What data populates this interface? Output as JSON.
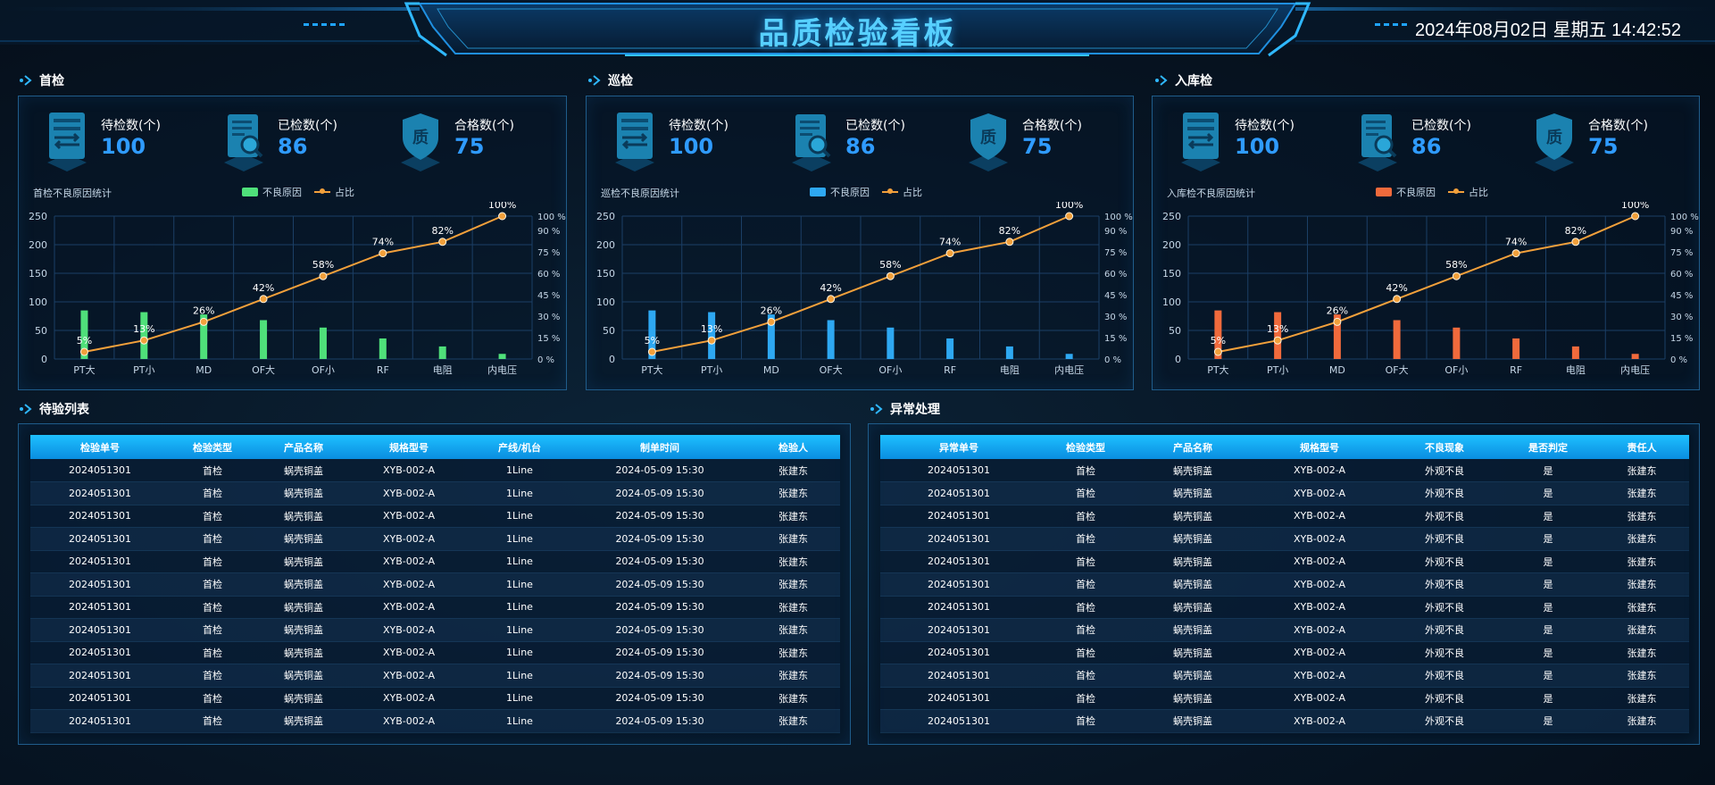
{
  "header": {
    "title": "品质检验看板",
    "datetime": "2024年08月02日 星期五 14:42:52"
  },
  "stat_labels": {
    "pending": "待检数(个)",
    "inspected": "已检数(个)",
    "qualified": "合格数(个)",
    "quality_char": "质"
  },
  "panels": [
    {
      "title": "首检",
      "pending": "100",
      "inspected": "86",
      "qualified": "75",
      "chart_caption": "首检不良原因统计",
      "legend_bar": "不良原因",
      "legend_line": "占比",
      "color": "#4fe07a"
    },
    {
      "title": "巡检",
      "pending": "100",
      "inspected": "86",
      "qualified": "75",
      "chart_caption": "巡检不良原因统计",
      "legend_bar": "不良原因",
      "legend_line": "占比",
      "color": "#2ea8f2"
    },
    {
      "title": "入库检",
      "pending": "100",
      "inspected": "86",
      "qualified": "75",
      "chart_caption": "入库检不良原因统计",
      "legend_bar": "不良原因",
      "legend_line": "占比",
      "color": "#f06a3c"
    }
  ],
  "chart_data": [
    {
      "type": "bar",
      "title": "首检不良原因统计",
      "categories": [
        "PT大",
        "PT小",
        "MD",
        "OF大",
        "OF小",
        "RF",
        "电阻",
        "内电压"
      ],
      "series": [
        {
          "name": "不良原因",
          "type": "bar",
          "axis": "left",
          "values": [
            85,
            82,
            78,
            68,
            55,
            36,
            22,
            9
          ]
        },
        {
          "name": "占比",
          "type": "line",
          "axis": "right",
          "values": [
            5,
            13,
            26,
            42,
            58,
            74,
            82,
            100
          ]
        }
      ],
      "ylim": [
        0,
        250
      ],
      "yticks": [
        0,
        50,
        100,
        150,
        200,
        250
      ],
      "y2lim": [
        0,
        100
      ],
      "y2ticks": [
        "0 %",
        "15 %",
        "30 %",
        "45 %",
        "60 %",
        "75 %",
        "90 %",
        "100 %"
      ],
      "point_labels": [
        "5%",
        "13%",
        "26%",
        "42%",
        "58%",
        "74%",
        "82%",
        "100%"
      ],
      "grid": true,
      "legend_position": "top-center"
    },
    {
      "type": "bar",
      "title": "巡检不良原因统计",
      "categories": [
        "PT大",
        "PT小",
        "MD",
        "OF大",
        "OF小",
        "RF",
        "电阻",
        "内电压"
      ],
      "series": [
        {
          "name": "不良原因",
          "type": "bar",
          "axis": "left",
          "values": [
            85,
            82,
            78,
            68,
            55,
            36,
            22,
            9
          ]
        },
        {
          "name": "占比",
          "type": "line",
          "axis": "right",
          "values": [
            5,
            13,
            26,
            42,
            58,
            74,
            82,
            100
          ]
        }
      ],
      "ylim": [
        0,
        250
      ],
      "yticks": [
        0,
        50,
        100,
        150,
        200,
        250
      ],
      "y2lim": [
        0,
        100
      ],
      "y2ticks": [
        "0 %",
        "15 %",
        "30 %",
        "45 %",
        "60 %",
        "75 %",
        "90 %",
        "100 %"
      ],
      "point_labels": [
        "5%",
        "13%",
        "26%",
        "42%",
        "58%",
        "74%",
        "82%",
        "100%"
      ],
      "grid": true,
      "legend_position": "top-center"
    },
    {
      "type": "bar",
      "title": "入库检不良原因统计",
      "categories": [
        "PT大",
        "PT小",
        "MD",
        "OF大",
        "OF小",
        "RF",
        "电阻",
        "内电压"
      ],
      "series": [
        {
          "name": "不良原因",
          "type": "bar",
          "axis": "left",
          "values": [
            85,
            82,
            78,
            68,
            55,
            36,
            22,
            9
          ]
        },
        {
          "name": "占比",
          "type": "line",
          "axis": "right",
          "values": [
            5,
            13,
            26,
            42,
            58,
            74,
            82,
            100
          ]
        }
      ],
      "ylim": [
        0,
        250
      ],
      "yticks": [
        0,
        50,
        100,
        150,
        200,
        250
      ],
      "y2lim": [
        0,
        100
      ],
      "y2ticks": [
        "0 %",
        "15 %",
        "30 %",
        "45 %",
        "60 %",
        "75 %",
        "90 %",
        "100 %"
      ],
      "point_labels": [
        "5%",
        "13%",
        "26%",
        "42%",
        "58%",
        "74%",
        "82%",
        "100%"
      ],
      "grid": true,
      "legend_position": "top-center"
    }
  ],
  "pending_list": {
    "title": "待验列表",
    "columns": [
      "检验单号",
      "检验类型",
      "产品名称",
      "规格型号",
      "产线/机台",
      "制单时间",
      "检验人"
    ],
    "rows": [
      [
        "2024051301",
        "首检",
        "蜗壳铜盖",
        "XYB-002-A",
        "1Line",
        "2024-05-09 15:30",
        "张建东"
      ],
      [
        "2024051301",
        "首检",
        "蜗壳铜盖",
        "XYB-002-A",
        "1Line",
        "2024-05-09 15:30",
        "张建东"
      ],
      [
        "2024051301",
        "首检",
        "蜗壳铜盖",
        "XYB-002-A",
        "1Line",
        "2024-05-09 15:30",
        "张建东"
      ],
      [
        "2024051301",
        "首检",
        "蜗壳铜盖",
        "XYB-002-A",
        "1Line",
        "2024-05-09 15:30",
        "张建东"
      ],
      [
        "2024051301",
        "首检",
        "蜗壳铜盖",
        "XYB-002-A",
        "1Line",
        "2024-05-09 15:30",
        "张建东"
      ],
      [
        "2024051301",
        "首检",
        "蜗壳铜盖",
        "XYB-002-A",
        "1Line",
        "2024-05-09 15:30",
        "张建东"
      ],
      [
        "2024051301",
        "首检",
        "蜗壳铜盖",
        "XYB-002-A",
        "1Line",
        "2024-05-09 15:30",
        "张建东"
      ],
      [
        "2024051301",
        "首检",
        "蜗壳铜盖",
        "XYB-002-A",
        "1Line",
        "2024-05-09 15:30",
        "张建东"
      ],
      [
        "2024051301",
        "首检",
        "蜗壳铜盖",
        "XYB-002-A",
        "1Line",
        "2024-05-09 15:30",
        "张建东"
      ],
      [
        "2024051301",
        "首检",
        "蜗壳铜盖",
        "XYB-002-A",
        "1Line",
        "2024-05-09 15:30",
        "张建东"
      ],
      [
        "2024051301",
        "首检",
        "蜗壳铜盖",
        "XYB-002-A",
        "1Line",
        "2024-05-09 15:30",
        "张建东"
      ],
      [
        "2024051301",
        "首检",
        "蜗壳铜盖",
        "XYB-002-A",
        "1Line",
        "2024-05-09 15:30",
        "张建东"
      ]
    ]
  },
  "exception_list": {
    "title": "异常处理",
    "columns": [
      "异常单号",
      "检验类型",
      "产品名称",
      "规格型号",
      "不良现象",
      "是否判定",
      "责任人"
    ],
    "rows": [
      [
        "2024051301",
        "首检",
        "蜗壳铜盖",
        "XYB-002-A",
        "外观不良",
        "是",
        "张建东"
      ],
      [
        "2024051301",
        "首检",
        "蜗壳铜盖",
        "XYB-002-A",
        "外观不良",
        "是",
        "张建东"
      ],
      [
        "2024051301",
        "首检",
        "蜗壳铜盖",
        "XYB-002-A",
        "外观不良",
        "是",
        "张建东"
      ],
      [
        "2024051301",
        "首检",
        "蜗壳铜盖",
        "XYB-002-A",
        "外观不良",
        "是",
        "张建东"
      ],
      [
        "2024051301",
        "首检",
        "蜗壳铜盖",
        "XYB-002-A",
        "外观不良",
        "是",
        "张建东"
      ],
      [
        "2024051301",
        "首检",
        "蜗壳铜盖",
        "XYB-002-A",
        "外观不良",
        "是",
        "张建东"
      ],
      [
        "2024051301",
        "首检",
        "蜗壳铜盖",
        "XYB-002-A",
        "外观不良",
        "是",
        "张建东"
      ],
      [
        "2024051301",
        "首检",
        "蜗壳铜盖",
        "XYB-002-A",
        "外观不良",
        "是",
        "张建东"
      ],
      [
        "2024051301",
        "首检",
        "蜗壳铜盖",
        "XYB-002-A",
        "外观不良",
        "是",
        "张建东"
      ],
      [
        "2024051301",
        "首检",
        "蜗壳铜盖",
        "XYB-002-A",
        "外观不良",
        "是",
        "张建东"
      ],
      [
        "2024051301",
        "首检",
        "蜗壳铜盖",
        "XYB-002-A",
        "外观不良",
        "是",
        "张建东"
      ],
      [
        "2024051301",
        "首检",
        "蜗壳铜盖",
        "XYB-002-A",
        "外观不良",
        "是",
        "张建东"
      ]
    ]
  },
  "theme": {
    "accent": "#2f9bff",
    "line_color": "#f2a03b",
    "table_header": "#1ec0ff",
    "panel_border": "#1f5c8a"
  }
}
